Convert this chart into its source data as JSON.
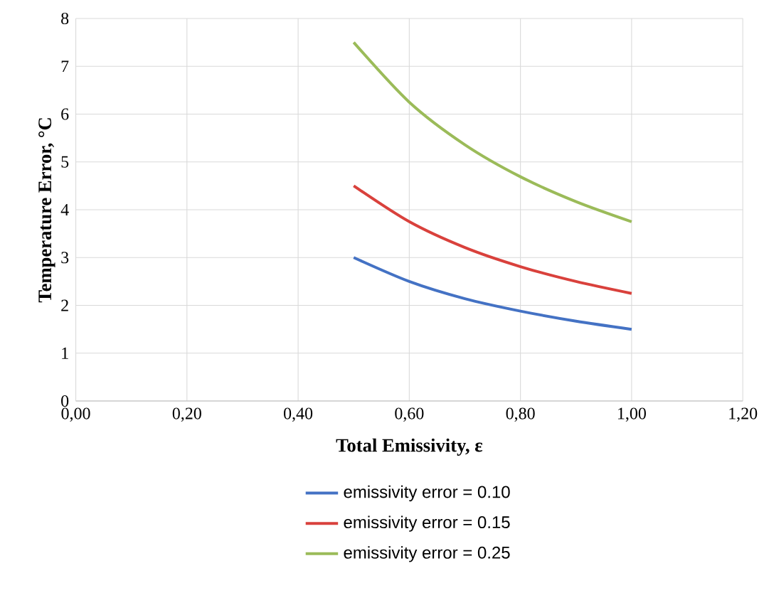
{
  "chart_data": {
    "type": "line",
    "xlabel": "Total Emissivity, ε",
    "ylabel": "Temperature Error, °C",
    "x": [
      0.5,
      0.6,
      0.7,
      0.8,
      0.9,
      1.0
    ],
    "series": [
      {
        "name": "emissivity error = 0.10",
        "color": "#4472c4",
        "values": [
          3.0,
          2.5,
          2.14,
          1.88,
          1.67,
          1.5
        ]
      },
      {
        "name": "emissivity error = 0.15",
        "color": "#d9413c",
        "values": [
          4.5,
          3.75,
          3.21,
          2.81,
          2.5,
          2.25
        ]
      },
      {
        "name": "emissivity error = 0.25",
        "color": "#9bbb59",
        "values": [
          7.5,
          6.25,
          5.36,
          4.69,
          4.17,
          3.75
        ]
      }
    ],
    "xlim": [
      0,
      1.2
    ],
    "xticks": [
      {
        "value": 0,
        "label": "0,00"
      },
      {
        "value": 0.2,
        "label": "0,20"
      },
      {
        "value": 0.4,
        "label": "0,40"
      },
      {
        "value": 0.6,
        "label": "0,60"
      },
      {
        "value": 0.8,
        "label": "0,80"
      },
      {
        "value": 1.0,
        "label": "1,00"
      },
      {
        "value": 1.2,
        "label": "1,20"
      }
    ],
    "ylim": [
      0,
      8
    ],
    "yticks": [
      0,
      1,
      2,
      3,
      4,
      5,
      6,
      7,
      8
    ],
    "grid": true,
    "legend": "bottom",
    "marker": "none",
    "line_style": "solid"
  }
}
